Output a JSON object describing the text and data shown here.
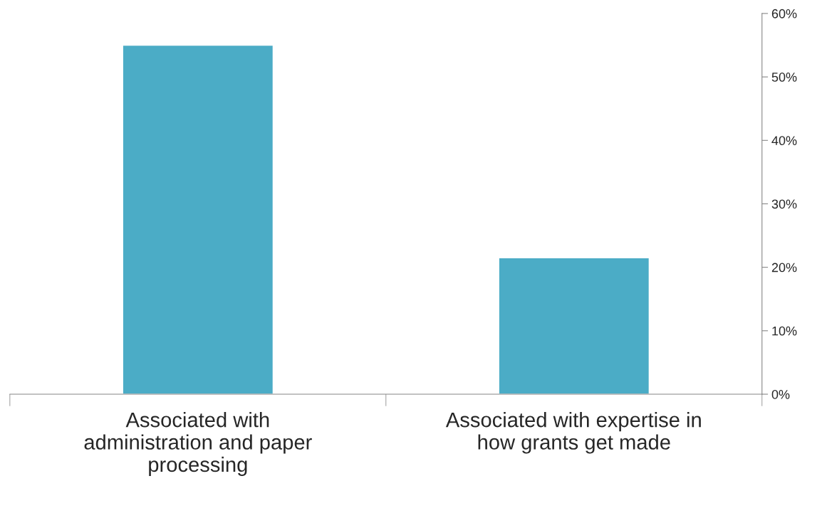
{
  "chart_data": {
    "type": "bar",
    "categories": [
      "Associated with\nadministration and paper\nprocessing",
      "Associated with expertise in\nhow grants get made"
    ],
    "values": [
      55,
      21.5
    ],
    "color": "#4bacc6",
    "ylim": [
      0,
      60
    ],
    "yticks": [
      {
        "value": 0,
        "label": "0%"
      },
      {
        "value": 10,
        "label": "10%"
      },
      {
        "value": 20,
        "label": "20%"
      },
      {
        "value": 30,
        "label": "30%"
      },
      {
        "value": 40,
        "label": "40%"
      },
      {
        "value": 50,
        "label": "50%"
      },
      {
        "value": 60,
        "label": "60%"
      }
    ],
    "grid": false,
    "legend": false
  }
}
